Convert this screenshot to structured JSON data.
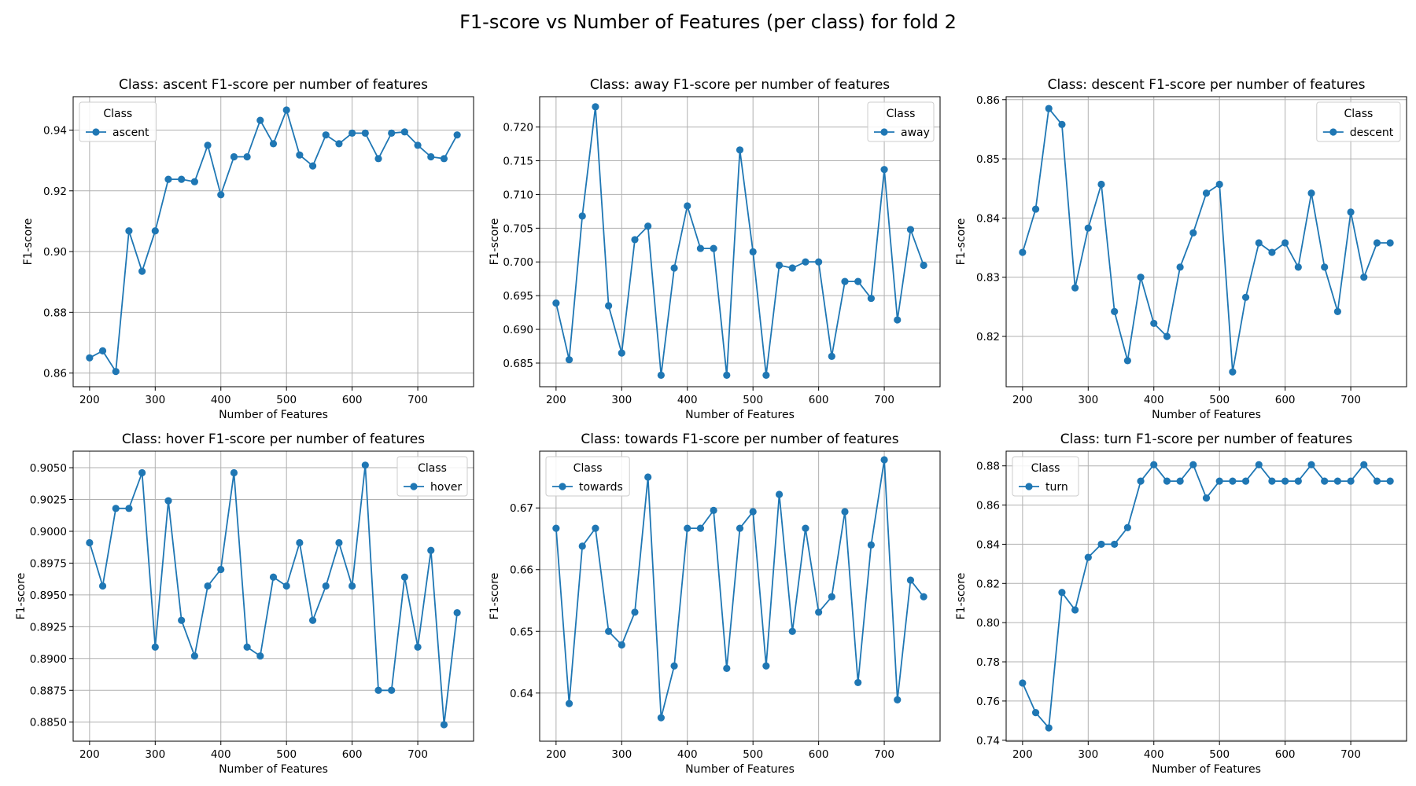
{
  "figure": {
    "title": "F1-score vs Number of Features (per class) for fold 2",
    "line_color": "#1f77b4"
  },
  "chart_data": [
    {
      "type": "line",
      "title": "Class: ascent F1-score per number of features",
      "xlabel": "Number of Features",
      "ylabel": "F1-score",
      "xlim": [
        175,
        785
      ],
      "ylim": [
        0.8555,
        0.951
      ],
      "xticks": [
        200,
        300,
        400,
        500,
        600,
        700
      ],
      "yticks": [
        0.86,
        0.88,
        0.9,
        0.92,
        0.94
      ],
      "ytick_labels": [
        "0.86",
        "0.88",
        "0.90",
        "0.92",
        "0.94"
      ],
      "grid": true,
      "legend": {
        "title": "Class",
        "position": "upper-left",
        "entries": [
          "ascent"
        ]
      },
      "x": [
        200,
        220,
        240,
        260,
        280,
        300,
        320,
        340,
        360,
        380,
        400,
        420,
        440,
        460,
        480,
        500,
        520,
        540,
        560,
        580,
        600,
        620,
        640,
        660,
        680,
        700,
        720,
        740,
        760
      ],
      "series": [
        {
          "name": "ascent",
          "values": [
            0.865,
            0.8673,
            0.8605,
            0.9068,
            0.8935,
            0.9068,
            0.9238,
            0.9238,
            0.923,
            0.935,
            0.9187,
            0.9312,
            0.9312,
            0.9432,
            0.9355,
            0.9466,
            0.9318,
            0.9282,
            0.9384,
            0.9355,
            0.939,
            0.939,
            0.9306,
            0.939,
            0.9394,
            0.935,
            0.9312,
            0.9306,
            0.9384
          ]
        }
      ]
    },
    {
      "type": "line",
      "title": "Class: away F1-score per number of features",
      "xlabel": "Number of Features",
      "ylabel": "F1-score",
      "xlim": [
        175,
        785
      ],
      "ylim": [
        0.6815,
        0.7245
      ],
      "xticks": [
        200,
        300,
        400,
        500,
        600,
        700
      ],
      "yticks": [
        0.685,
        0.69,
        0.695,
        0.7,
        0.705,
        0.71,
        0.715,
        0.72
      ],
      "ytick_labels": [
        "0.685",
        "0.690",
        "0.695",
        "0.700",
        "0.705",
        "0.710",
        "0.715",
        "0.720"
      ],
      "grid": true,
      "legend": {
        "title": "Class",
        "position": "upper-right",
        "entries": [
          "away"
        ]
      },
      "x": [
        200,
        220,
        240,
        260,
        280,
        300,
        320,
        340,
        360,
        380,
        400,
        420,
        440,
        460,
        480,
        500,
        520,
        540,
        560,
        580,
        600,
        620,
        640,
        660,
        680,
        700,
        720,
        740,
        760
      ],
      "series": [
        {
          "name": "away",
          "values": [
            0.6939,
            0.6855,
            0.7068,
            0.723,
            0.6935,
            0.6865,
            0.7033,
            0.7053,
            0.6832,
            0.6991,
            0.7083,
            0.702,
            0.702,
            0.6832,
            0.7166,
            0.7015,
            0.6832,
            0.6995,
            0.6991,
            0.7,
            0.7,
            0.686,
            0.6971,
            0.6971,
            0.6946,
            0.7137,
            0.6914,
            0.7048,
            0.6995
          ]
        }
      ]
    },
    {
      "type": "line",
      "title": "Class: descent F1-score per number of features",
      "xlabel": "Number of Features",
      "ylabel": "F1-score",
      "xlim": [
        175,
        785
      ],
      "ylim": [
        0.8115,
        0.8605
      ],
      "xticks": [
        200,
        300,
        400,
        500,
        600,
        700
      ],
      "yticks": [
        0.82,
        0.83,
        0.84,
        0.85,
        0.86
      ],
      "ytick_labels": [
        "0.82",
        "0.83",
        "0.84",
        "0.85",
        "0.86"
      ],
      "grid": true,
      "legend": {
        "title": "Class",
        "position": "upper-right",
        "entries": [
          "descent"
        ]
      },
      "x": [
        200,
        220,
        240,
        260,
        280,
        300,
        320,
        340,
        360,
        380,
        400,
        420,
        440,
        460,
        480,
        500,
        520,
        540,
        560,
        580,
        600,
        620,
        640,
        660,
        680,
        700,
        720,
        740,
        760
      ],
      "series": [
        {
          "name": "descent",
          "values": [
            0.8342,
            0.8415,
            0.8585,
            0.8558,
            0.8282,
            0.8383,
            0.8457,
            0.8242,
            0.8159,
            0.83,
            0.8222,
            0.82,
            0.8317,
            0.8375,
            0.8442,
            0.8457,
            0.814,
            0.8266,
            0.8358,
            0.8342,
            0.8358,
            0.8317,
            0.8442,
            0.8317,
            0.8242,
            0.841,
            0.83,
            0.8358,
            0.8358
          ]
        }
      ]
    },
    {
      "type": "line",
      "title": "Class: hover F1-score per number of features",
      "xlabel": "Number of Features",
      "ylabel": "F1-score",
      "xlim": [
        175,
        785
      ],
      "ylim": [
        0.8835,
        0.9063
      ],
      "xticks": [
        200,
        300,
        400,
        500,
        600,
        700
      ],
      "yticks": [
        0.885,
        0.8875,
        0.89,
        0.8925,
        0.895,
        0.8975,
        0.9,
        0.9025,
        0.905
      ],
      "ytick_labels": [
        "0.8850",
        "0.8875",
        "0.8900",
        "0.8925",
        "0.8950",
        "0.8975",
        "0.9000",
        "0.9025",
        "0.9050"
      ],
      "grid": true,
      "legend": {
        "title": "Class",
        "position": "upper-right",
        "entries": [
          "hover"
        ]
      },
      "x": [
        200,
        220,
        240,
        260,
        280,
        300,
        320,
        340,
        360,
        380,
        400,
        420,
        440,
        460,
        480,
        500,
        520,
        540,
        560,
        580,
        600,
        620,
        640,
        660,
        680,
        700,
        720,
        740,
        760
      ],
      "series": [
        {
          "name": "hover",
          "values": [
            0.8991,
            0.8957,
            0.9018,
            0.9018,
            0.9046,
            0.8909,
            0.9024,
            0.893,
            0.8902,
            0.8957,
            0.897,
            0.9046,
            0.8909,
            0.8902,
            0.8964,
            0.8957,
            0.8991,
            0.893,
            0.8957,
            0.8991,
            0.8957,
            0.9052,
            0.8875,
            0.8875,
            0.8964,
            0.8909,
            0.8985,
            0.8848,
            0.8936
          ]
        }
      ]
    },
    {
      "type": "line",
      "title": "Class: towards F1-score per number of features",
      "xlabel": "Number of Features",
      "ylabel": "F1-score",
      "xlim": [
        175,
        785
      ],
      "ylim": [
        0.6322,
        0.6792
      ],
      "xticks": [
        200,
        300,
        400,
        500,
        600,
        700
      ],
      "yticks": [
        0.64,
        0.65,
        0.66,
        0.67
      ],
      "ytick_labels": [
        "0.64",
        "0.65",
        "0.66",
        "0.67"
      ],
      "grid": true,
      "legend": {
        "title": "Class",
        "position": "upper-left",
        "entries": [
          "towards"
        ]
      },
      "x": [
        200,
        220,
        240,
        260,
        280,
        300,
        320,
        340,
        360,
        380,
        400,
        420,
        440,
        460,
        480,
        500,
        520,
        540,
        560,
        580,
        600,
        620,
        640,
        660,
        680,
        700,
        720,
        740,
        760
      ],
      "series": [
        {
          "name": "towards",
          "values": [
            0.6667,
            0.6383,
            0.6638,
            0.6667,
            0.65,
            0.6478,
            0.6531,
            0.675,
            0.636,
            0.6444,
            0.6667,
            0.6667,
            0.6696,
            0.644,
            0.6667,
            0.6694,
            0.6444,
            0.6722,
            0.65,
            0.6667,
            0.6531,
            0.6556,
            0.6694,
            0.6417,
            0.664,
            0.6778,
            0.6389,
            0.6583,
            0.6556
          ]
        }
      ]
    },
    {
      "type": "line",
      "title": "Class: turn F1-score per number of features",
      "xlabel": "Number of Features",
      "ylabel": "F1-score",
      "xlim": [
        175,
        785
      ],
      "ylim": [
        0.7395,
        0.8875
      ],
      "xticks": [
        200,
        300,
        400,
        500,
        600,
        700
      ],
      "yticks": [
        0.74,
        0.76,
        0.78,
        0.8,
        0.82,
        0.84,
        0.86,
        0.88
      ],
      "ytick_labels": [
        "0.74",
        "0.76",
        "0.78",
        "0.80",
        "0.82",
        "0.84",
        "0.86",
        "0.88"
      ],
      "grid": true,
      "legend": {
        "title": "Class",
        "position": "upper-left",
        "entries": [
          "turn"
        ]
      },
      "x": [
        200,
        220,
        240,
        260,
        280,
        300,
        320,
        340,
        360,
        380,
        400,
        420,
        440,
        460,
        480,
        500,
        520,
        540,
        560,
        580,
        600,
        620,
        640,
        660,
        680,
        700,
        720,
        740,
        760
      ],
      "series": [
        {
          "name": "turn",
          "values": [
            0.7692,
            0.7541,
            0.7463,
            0.8154,
            0.8065,
            0.8333,
            0.84,
            0.84,
            0.8485,
            0.8722,
            0.8806,
            0.8722,
            0.8722,
            0.8806,
            0.8636,
            0.8722,
            0.8722,
            0.8722,
            0.8806,
            0.8722,
            0.8722,
            0.8722,
            0.8806,
            0.8722,
            0.8722,
            0.8722,
            0.8806,
            0.8722,
            0.8722
          ]
        }
      ]
    }
  ]
}
